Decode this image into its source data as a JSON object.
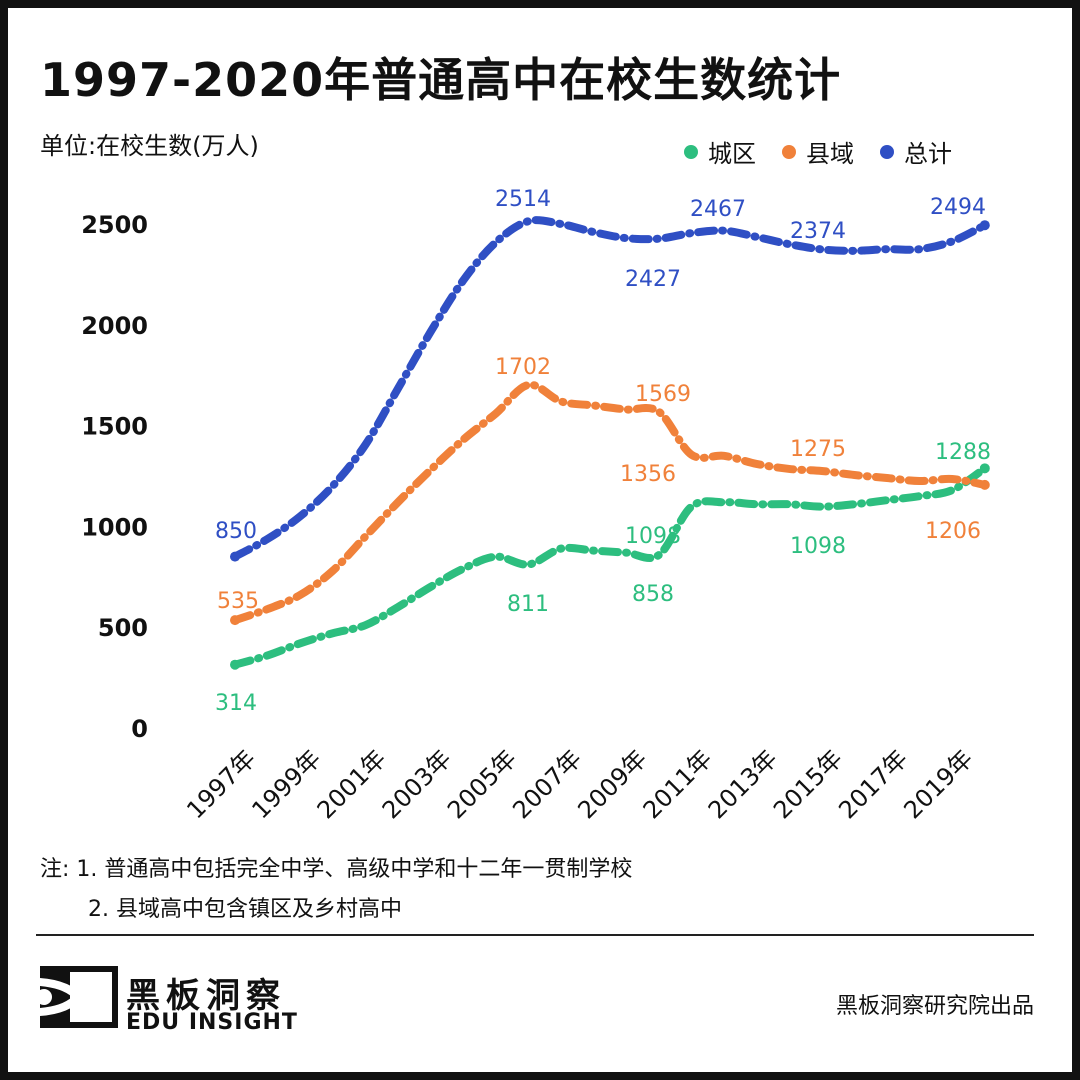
{
  "title": "1997-2020年普通高中在校生数统计",
  "unit_label": "单位:在校生数(万人)",
  "legend": [
    {
      "name": "城区",
      "color": "#2dbe7f"
    },
    {
      "name": "县域",
      "color": "#f0813a"
    },
    {
      "name": "总计",
      "color": "#2f4fc4"
    }
  ],
  "chart_data": {
    "type": "line",
    "x": [
      1997,
      1998,
      1999,
      2000,
      2001,
      2002,
      2003,
      2004,
      2005,
      2006,
      2007,
      2008,
      2009,
      2010,
      2011,
      2012,
      2013,
      2014,
      2015,
      2016,
      2017,
      2018,
      2019,
      2020
    ],
    "x_tick_labels": [
      "1997年",
      "1999年",
      "2001年",
      "2003年",
      "2005年",
      "2007年",
      "2009年",
      "2011年",
      "2013年",
      "2015年",
      "2017年",
      "2019年"
    ],
    "x_tick_years": [
      1997,
      1999,
      2001,
      2003,
      2005,
      2007,
      2009,
      2011,
      2013,
      2015,
      2017,
      2019
    ],
    "y_ticks": [
      0,
      500,
      1000,
      1500,
      2000,
      2500
    ],
    "ylim": [
      0,
      2500
    ],
    "grid": false,
    "legend_position": "top-right",
    "series": [
      {
        "name": "城区",
        "color": "#2dbe7f",
        "values": [
          314,
          360,
          420,
          470,
          510,
          600,
          700,
          790,
          850,
          811,
          890,
          880,
          870,
          858,
          1098,
          1120,
          1110,
          1110,
          1098,
          1110,
          1130,
          1150,
          1180,
          1288
        ],
        "labels": [
          {
            "year": 1997,
            "value": "314",
            "position": "below"
          },
          {
            "year": 2006,
            "value": "811",
            "position": "below"
          },
          {
            "year": 2010,
            "value": "858",
            "position": "below"
          },
          {
            "year": 2010,
            "value": "1098",
            "position": "above"
          },
          {
            "year": 2015,
            "value": "1098",
            "position": "below"
          },
          {
            "year": 2020,
            "value": "1288",
            "position": "above"
          }
        ]
      },
      {
        "name": "县域",
        "color": "#f0813a",
        "values": [
          535,
          590,
          660,
          780,
          950,
          1120,
          1280,
          1430,
          1560,
          1702,
          1620,
          1600,
          1580,
          1569,
          1356,
          1350,
          1310,
          1285,
          1275,
          1255,
          1240,
          1225,
          1235,
          1206
        ],
        "labels": [
          {
            "year": 1997,
            "value": "535",
            "position": "above"
          },
          {
            "year": 2006,
            "value": "1702",
            "position": "above"
          },
          {
            "year": 2010,
            "value": "1569",
            "position": "above"
          },
          {
            "year": 2010,
            "value": "1356",
            "position": "below"
          },
          {
            "year": 2015,
            "value": "1275",
            "position": "above"
          },
          {
            "year": 2020,
            "value": "1206",
            "position": "below"
          }
        ]
      },
      {
        "name": "总计",
        "color": "#2f4fc4",
        "values": [
          850,
          938,
          1050,
          1201,
          1405,
          1684,
          1965,
          2220,
          2409,
          2514,
          2500,
          2460,
          2430,
          2427,
          2455,
          2467,
          2436,
          2400,
          2374,
          2367,
          2375,
          2375,
          2414,
          2494
        ],
        "labels": [
          {
            "year": 1997,
            "value": "850",
            "position": "above"
          },
          {
            "year": 2006,
            "value": "2514",
            "position": "above"
          },
          {
            "year": 2010,
            "value": "2427",
            "position": "below"
          },
          {
            "year": 2012,
            "value": "2467",
            "position": "above"
          },
          {
            "year": 2015,
            "value": "2374",
            "position": "above"
          },
          {
            "year": 2020,
            "value": "2494",
            "position": "above"
          }
        ]
      }
    ]
  },
  "notes": {
    "prefix": "注:",
    "items": [
      "1. 普通高中包括完全中学、高级中学和十二年一贯制学校",
      "2. 县域高中包含镇区及乡村高中"
    ]
  },
  "brand": {
    "cn": "黑板洞察",
    "en": "EDU INSIGHT"
  },
  "credit": "黑板洞察研究院出品"
}
